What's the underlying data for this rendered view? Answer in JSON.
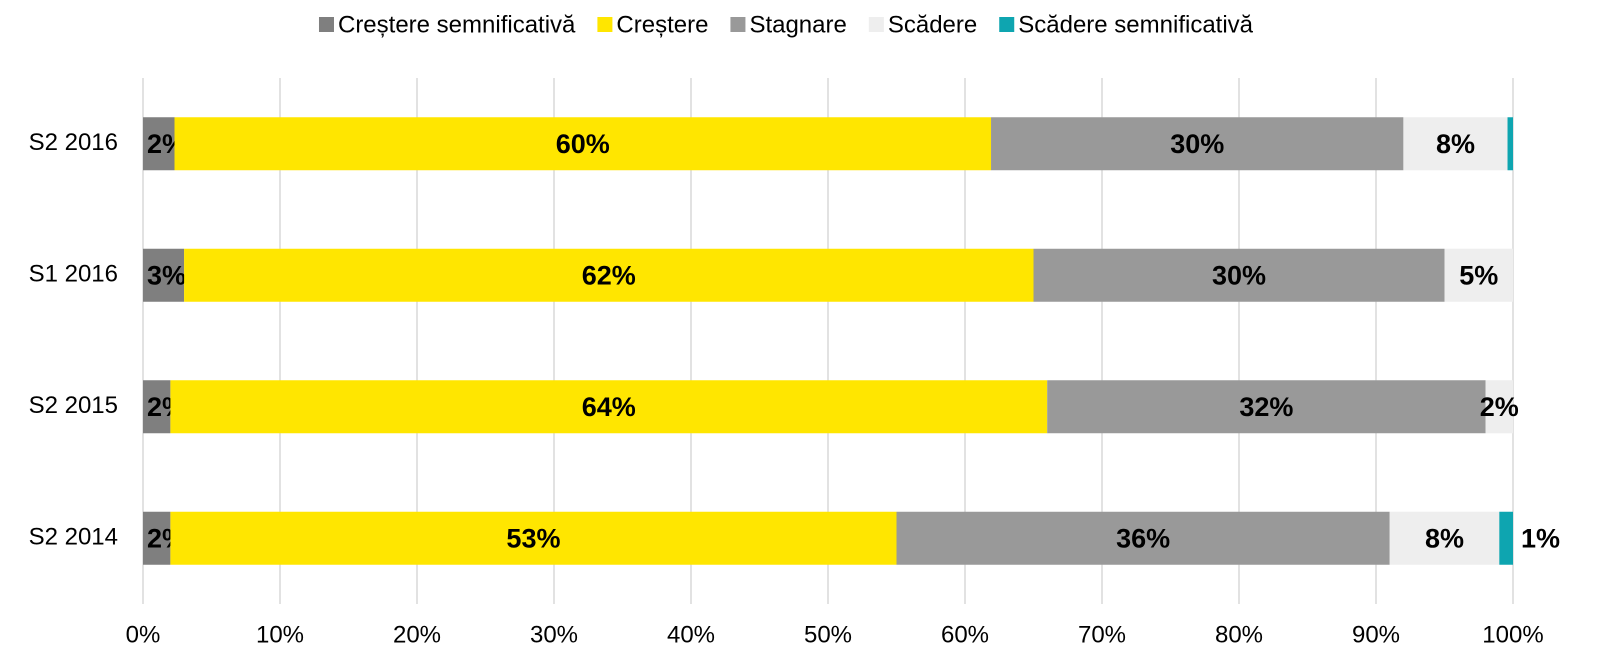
{
  "chart_data": {
    "type": "stacked-barh",
    "categories": [
      "S2 2016",
      "S1 2016",
      "S2 2015",
      "S2 2014"
    ],
    "series": [
      {
        "name": "Creștere semnificativă",
        "color": "#7f7f7f",
        "values": [
          2.3,
          3.0,
          2.0,
          2.0
        ],
        "value_labels": [
          "2%",
          "3%",
          "2%",
          "2%"
        ]
      },
      {
        "name": "Creștere",
        "color": "#ffe600",
        "values": [
          59.6,
          62.0,
          64.0,
          53.0
        ],
        "value_labels": [
          "60%",
          "62%",
          "64%",
          "53%"
        ]
      },
      {
        "name": "Stagnare",
        "color": "#999999",
        "values": [
          30.1,
          30.0,
          32.0,
          36.0
        ],
        "value_labels": [
          "30%",
          "30%",
          "32%",
          "36%"
        ]
      },
      {
        "name": "Scădere",
        "color": "#eeeeee",
        "values": [
          7.6,
          5.0,
          2.0,
          8.0
        ],
        "value_labels": [
          "8%",
          "5%",
          "2%",
          "8%"
        ]
      },
      {
        "name": "Scădere semnificativă",
        "color": "#0ea5b0",
        "values": [
          0.4,
          0,
          0,
          1.0
        ],
        "value_labels": [
          null,
          null,
          null,
          "1%"
        ]
      }
    ],
    "xlim": [
      0,
      100
    ],
    "xticks": [
      {
        "value": 0,
        "label": "0%"
      },
      {
        "value": 10,
        "label": "10%"
      },
      {
        "value": 20,
        "label": "20%"
      },
      {
        "value": 30,
        "label": "30%"
      },
      {
        "value": 40,
        "label": "40%"
      },
      {
        "value": 50,
        "label": "50%"
      },
      {
        "value": 60,
        "label": "60%"
      },
      {
        "value": 70,
        "label": "70%"
      },
      {
        "value": 80,
        "label": "80%"
      },
      {
        "value": 90,
        "label": "90%"
      },
      {
        "value": 100,
        "label": "100%"
      }
    ],
    "grid": true,
    "legend": "top"
  }
}
